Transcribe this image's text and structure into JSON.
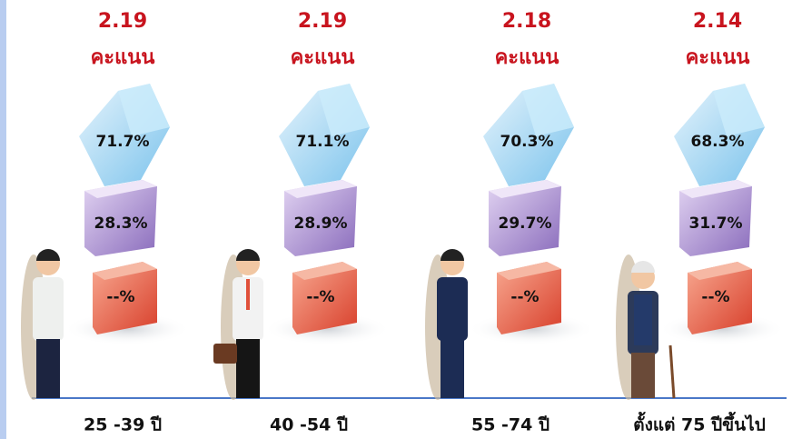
{
  "groups": [
    {
      "score": "2.19",
      "unit": "คะแนน",
      "top": "71.7%",
      "middle": "28.3%",
      "bottom": "--%",
      "age": "25 -39 ปี"
    },
    {
      "score": "2.19",
      "unit": "คะแนน",
      "top": "71.1%",
      "middle": "28.9%",
      "bottom": "--%",
      "age": "40 -54 ปี"
    },
    {
      "score": "2.18",
      "unit": "คะแนน",
      "top": "70.3%",
      "middle": "29.7%",
      "bottom": "--%",
      "age": "55 -74 ปี"
    },
    {
      "score": "2.14",
      "unit": "คะแนน",
      "top": "68.3%",
      "middle": "31.7%",
      "bottom": "--%",
      "age": "ตั้งแต่ 75 ปีขึ้นไป"
    }
  ]
}
